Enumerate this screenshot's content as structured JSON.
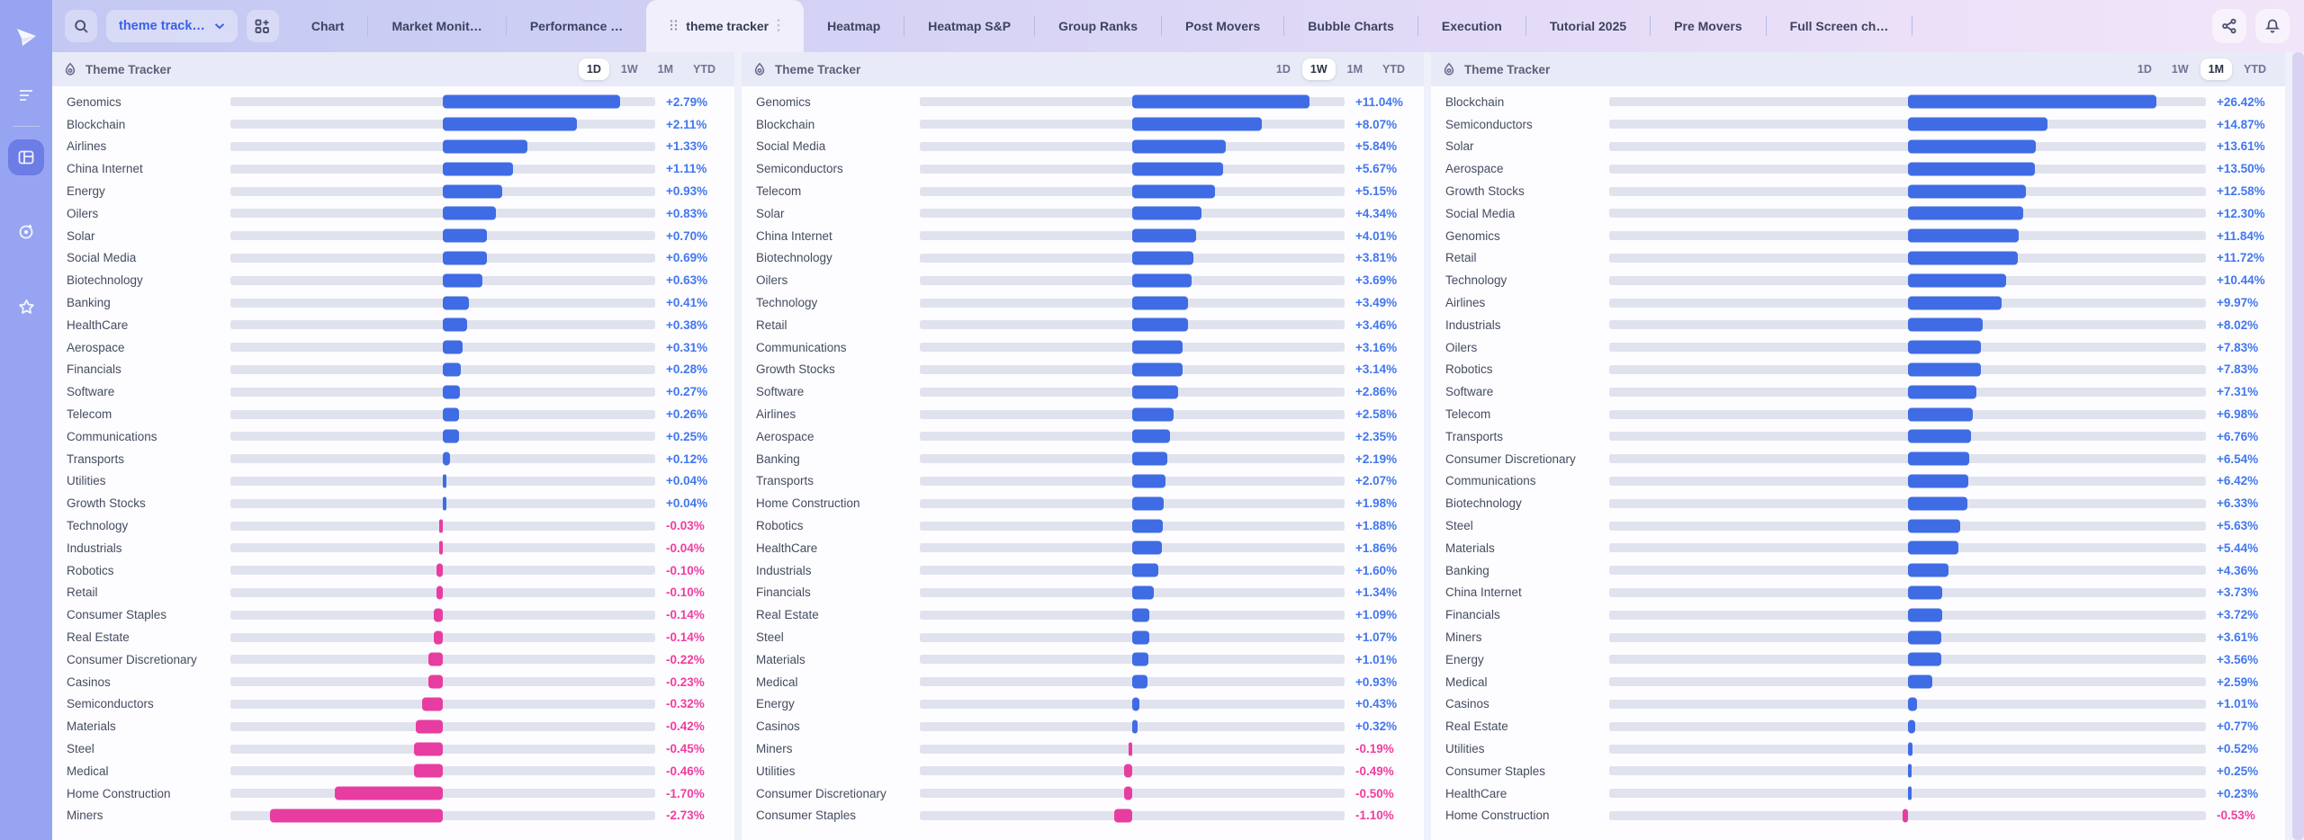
{
  "sidebar": {
    "icons": [
      {
        "name": "logo",
        "label": "app-logo"
      },
      {
        "name": "menu",
        "label": "menu-icon"
      },
      {
        "name": "layout",
        "label": "dashboard-layout-icon",
        "active": true
      },
      {
        "name": "target",
        "label": "tracker-target-icon"
      },
      {
        "name": "star",
        "label": "favorites-star-icon"
      }
    ]
  },
  "nav": {
    "search_icon": "magnifier",
    "dropdown": {
      "label": "theme track…",
      "chevron_icon": "chevron-down"
    },
    "add_widget_icon": "grid-plus",
    "tabs": [
      {
        "label": "Chart",
        "active": false
      },
      {
        "label": "Market Monit…",
        "active": false
      },
      {
        "label": "Performance …",
        "active": false
      },
      {
        "label": "theme tracker",
        "active": true
      },
      {
        "label": "Heatmap",
        "active": false
      },
      {
        "label": "Heatmap S&P",
        "active": false
      },
      {
        "label": "Group Ranks",
        "active": false
      },
      {
        "label": "Post Movers",
        "active": false
      },
      {
        "label": "Bubble Charts",
        "active": false
      },
      {
        "label": "Execution",
        "active": false
      },
      {
        "label": "Tutorial 2025",
        "active": false
      },
      {
        "label": "Pre Movers",
        "active": false
      },
      {
        "label": "Full Screen ch…",
        "active": false
      }
    ],
    "action_icons": [
      "share-icon",
      "bell-icon"
    ]
  },
  "colors": {
    "positive_bar": "#3f6ce4",
    "negative_bar": "#e83da0",
    "positive_text": "#4277ef",
    "negative_text": "#f03da0",
    "track": "#e0e3ee",
    "sidebar": "#97a4f1",
    "panel_header": "#e9eaf7"
  },
  "panels": [
    {
      "title": "Theme Tracker",
      "header_icon": "flame-droplet-icon",
      "ranges": [
        "1D",
        "1W",
        "1M",
        "YTD"
      ],
      "active_range": "1D",
      "rows": [
        {
          "name": "Genomics",
          "change": "+2.79%"
        },
        {
          "name": "Blockchain",
          "change": "+2.11%"
        },
        {
          "name": "Airlines",
          "change": "+1.33%"
        },
        {
          "name": "China Internet",
          "change": "+1.11%"
        },
        {
          "name": "Energy",
          "change": "+0.93%"
        },
        {
          "name": "Oilers",
          "change": "+0.83%"
        },
        {
          "name": "Solar",
          "change": "+0.70%"
        },
        {
          "name": "Social Media",
          "change": "+0.69%"
        },
        {
          "name": "Biotechnology",
          "change": "+0.63%"
        },
        {
          "name": "Banking",
          "change": "+0.41%"
        },
        {
          "name": "HealthCare",
          "change": "+0.38%"
        },
        {
          "name": "Aerospace",
          "change": "+0.31%"
        },
        {
          "name": "Financials",
          "change": "+0.28%"
        },
        {
          "name": "Software",
          "change": "+0.27%"
        },
        {
          "name": "Telecom",
          "change": "+0.26%"
        },
        {
          "name": "Communications",
          "change": "+0.25%"
        },
        {
          "name": "Transports",
          "change": "+0.12%"
        },
        {
          "name": "Utilities",
          "change": "+0.04%"
        },
        {
          "name": "Growth Stocks",
          "change": "+0.04%"
        },
        {
          "name": "Technology",
          "change": "-0.03%"
        },
        {
          "name": "Industrials",
          "change": "-0.04%"
        },
        {
          "name": "Robotics",
          "change": "-0.10%"
        },
        {
          "name": "Retail",
          "change": "-0.10%"
        },
        {
          "name": "Consumer Staples",
          "change": "-0.14%"
        },
        {
          "name": "Real Estate",
          "change": "-0.14%"
        },
        {
          "name": "Consumer Discretionary",
          "change": "-0.22%"
        },
        {
          "name": "Casinos",
          "change": "-0.23%"
        },
        {
          "name": "Semiconductors",
          "change": "-0.32%"
        },
        {
          "name": "Materials",
          "change": "-0.42%"
        },
        {
          "name": "Steel",
          "change": "-0.45%"
        },
        {
          "name": "Medical",
          "change": "-0.46%"
        },
        {
          "name": "Home Construction",
          "change": "-1.70%"
        },
        {
          "name": "Miners",
          "change": "-2.73%"
        }
      ]
    },
    {
      "title": "Theme Tracker",
      "header_icon": "flame-droplet-icon",
      "ranges": [
        "1D",
        "1W",
        "1M",
        "YTD"
      ],
      "active_range": "1W",
      "rows": [
        {
          "name": "Genomics",
          "change": "+11.04%"
        },
        {
          "name": "Blockchain",
          "change": "+8.07%"
        },
        {
          "name": "Social Media",
          "change": "+5.84%"
        },
        {
          "name": "Semiconductors",
          "change": "+5.67%"
        },
        {
          "name": "Telecom",
          "change": "+5.15%"
        },
        {
          "name": "Solar",
          "change": "+4.34%"
        },
        {
          "name": "China Internet",
          "change": "+4.01%"
        },
        {
          "name": "Biotechnology",
          "change": "+3.81%"
        },
        {
          "name": "Oilers",
          "change": "+3.69%"
        },
        {
          "name": "Technology",
          "change": "+3.49%"
        },
        {
          "name": "Retail",
          "change": "+3.46%"
        },
        {
          "name": "Communications",
          "change": "+3.16%"
        },
        {
          "name": "Growth Stocks",
          "change": "+3.14%"
        },
        {
          "name": "Software",
          "change": "+2.86%"
        },
        {
          "name": "Airlines",
          "change": "+2.58%"
        },
        {
          "name": "Aerospace",
          "change": "+2.35%"
        },
        {
          "name": "Banking",
          "change": "+2.19%"
        },
        {
          "name": "Transports",
          "change": "+2.07%"
        },
        {
          "name": "Home Construction",
          "change": "+1.98%"
        },
        {
          "name": "Robotics",
          "change": "+1.88%"
        },
        {
          "name": "HealthCare",
          "change": "+1.86%"
        },
        {
          "name": "Industrials",
          "change": "+1.60%"
        },
        {
          "name": "Financials",
          "change": "+1.34%"
        },
        {
          "name": "Real Estate",
          "change": "+1.09%"
        },
        {
          "name": "Steel",
          "change": "+1.07%"
        },
        {
          "name": "Materials",
          "change": "+1.01%"
        },
        {
          "name": "Medical",
          "change": "+0.93%"
        },
        {
          "name": "Energy",
          "change": "+0.43%"
        },
        {
          "name": "Casinos",
          "change": "+0.32%"
        },
        {
          "name": "Miners",
          "change": "-0.19%"
        },
        {
          "name": "Utilities",
          "change": "-0.49%"
        },
        {
          "name": "Consumer Discretionary",
          "change": "-0.50%"
        },
        {
          "name": "Consumer Staples",
          "change": "-1.10%"
        }
      ]
    },
    {
      "title": "Theme Tracker",
      "header_icon": "flame-droplet-icon",
      "ranges": [
        "1D",
        "1W",
        "1M",
        "YTD"
      ],
      "active_range": "1M",
      "rows": [
        {
          "name": "Blockchain",
          "change": "+26.42%"
        },
        {
          "name": "Semiconductors",
          "change": "+14.87%"
        },
        {
          "name": "Solar",
          "change": "+13.61%"
        },
        {
          "name": "Aerospace",
          "change": "+13.50%"
        },
        {
          "name": "Growth Stocks",
          "change": "+12.58%"
        },
        {
          "name": "Social Media",
          "change": "+12.30%"
        },
        {
          "name": "Genomics",
          "change": "+11.84%"
        },
        {
          "name": "Retail",
          "change": "+11.72%"
        },
        {
          "name": "Technology",
          "change": "+10.44%"
        },
        {
          "name": "Airlines",
          "change": "+9.97%"
        },
        {
          "name": "Industrials",
          "change": "+8.02%"
        },
        {
          "name": "Oilers",
          "change": "+7.83%"
        },
        {
          "name": "Robotics",
          "change": "+7.83%"
        },
        {
          "name": "Software",
          "change": "+7.31%"
        },
        {
          "name": "Telecom",
          "change": "+6.98%"
        },
        {
          "name": "Transports",
          "change": "+6.76%"
        },
        {
          "name": "Consumer Discretionary",
          "change": "+6.54%"
        },
        {
          "name": "Communications",
          "change": "+6.42%"
        },
        {
          "name": "Biotechnology",
          "change": "+6.33%"
        },
        {
          "name": "Steel",
          "change": "+5.63%"
        },
        {
          "name": "Materials",
          "change": "+5.44%"
        },
        {
          "name": "Banking",
          "change": "+4.36%"
        },
        {
          "name": "China Internet",
          "change": "+3.73%"
        },
        {
          "name": "Financials",
          "change": "+3.72%"
        },
        {
          "name": "Miners",
          "change": "+3.61%"
        },
        {
          "name": "Energy",
          "change": "+3.56%"
        },
        {
          "name": "Medical",
          "change": "+2.59%"
        },
        {
          "name": "Casinos",
          "change": "+1.01%"
        },
        {
          "name": "Real Estate",
          "change": "+0.77%"
        },
        {
          "name": "Utilities",
          "change": "+0.52%"
        },
        {
          "name": "Consumer Staples",
          "change": "+0.25%"
        },
        {
          "name": "HealthCare",
          "change": "+0.23%"
        },
        {
          "name": "Home Construction",
          "change": "-0.53%"
        }
      ]
    }
  ]
}
